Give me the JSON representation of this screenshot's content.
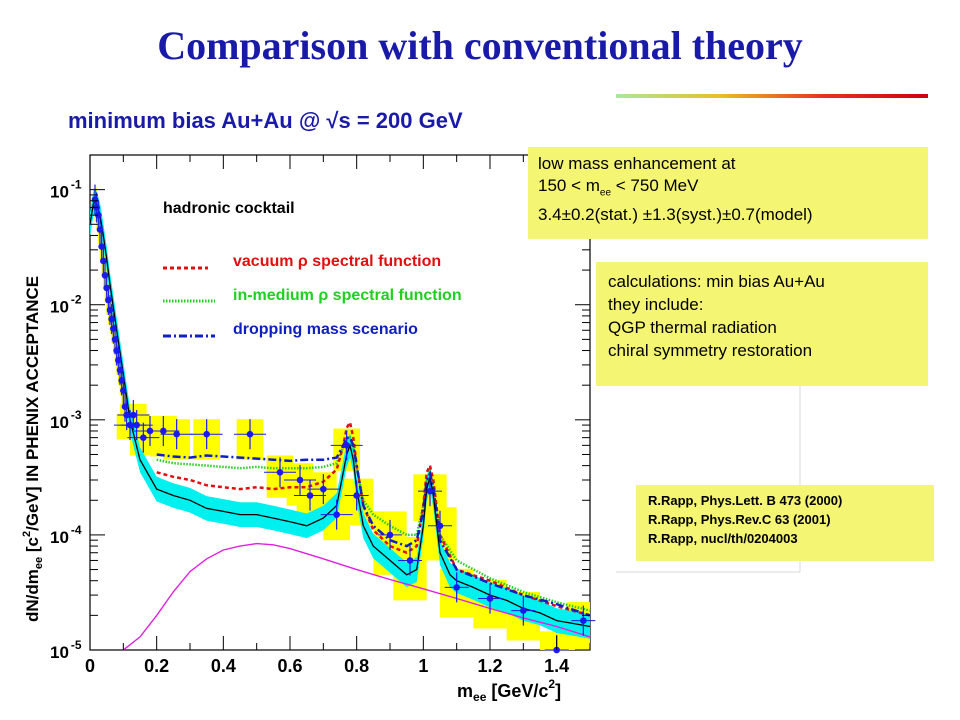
{
  "slide": {
    "title": "Comparison with conventional theory"
  },
  "colors": {
    "title": "#1a1aa8",
    "box": "#f5f574",
    "data_points": "#1a1aee",
    "vacuum": "#e01010",
    "in_medium": "#20d020",
    "dropping": "#1020c0",
    "cocktail": "#000000",
    "cocktail_band": "#00f0f0",
    "charm": "#e020e0",
    "syst": "#ffff00"
  },
  "chart_data": {
    "type": "line",
    "title": "minimum bias Au+Au @ √s = 200 GeV",
    "xlabel": "m",
    "xlabel_sub": "ee",
    "xlabel_tail": " [GeV/c",
    "xlabel_sup": "2",
    "xlabel_end": "]",
    "ylabel_a": "dN/dm",
    "ylabel_sub": "ee",
    "ylabel_b": " [c",
    "ylabel_sup": "2",
    "ylabel_c": "/GeV] IN PHENIX ACCEPTANCE",
    "xlim": [
      0,
      1.5
    ],
    "ylim": [
      1e-05,
      0.2
    ],
    "yscale": "log",
    "xticks": [
      "0",
      "0.2",
      "0.4",
      "0.6",
      "0.8",
      "1",
      "1.2",
      "1.4"
    ],
    "ytick_base": "10",
    "yticks": [
      "-1",
      "-2",
      "-3",
      "-4",
      "-5"
    ],
    "legend": {
      "cocktail": "hadronic cocktail",
      "vacuum": "vacuum ρ spectral function",
      "in_medium": "in-medium ρ spectral function",
      "dropping": "dropping mass scenario"
    },
    "cocktail": {
      "x": [
        0.0,
        0.01,
        0.015,
        0.02,
        0.03,
        0.04,
        0.05,
        0.06,
        0.08,
        0.1,
        0.12,
        0.15,
        0.2,
        0.25,
        0.3,
        0.35,
        0.4,
        0.45,
        0.5,
        0.55,
        0.6,
        0.65,
        0.7,
        0.74,
        0.76,
        0.77,
        0.78,
        0.79,
        0.8,
        0.82,
        0.85,
        0.9,
        0.95,
        0.98,
        1.0,
        1.01,
        1.02,
        1.03,
        1.05,
        1.08,
        1.1,
        1.15,
        1.2,
        1.25,
        1.3,
        1.35,
        1.4,
        1.45,
        1.5
      ],
      "y": [
        0.05,
        0.075,
        0.08,
        0.075,
        0.06,
        0.04,
        0.025,
        0.015,
        0.006,
        0.0025,
        0.001,
        0.00045,
        0.00025,
        0.00022,
        0.0002,
        0.00017,
        0.00016,
        0.00015,
        0.00015,
        0.00014,
        0.00013,
        0.00012,
        0.00014,
        0.00018,
        0.00035,
        0.0005,
        0.0006,
        0.00045,
        0.00025,
        0.00012,
        8e-05,
        6e-05,
        4.5e-05,
        5e-05,
        0.00012,
        0.00025,
        0.00032,
        0.00022,
        7e-05,
        4.5e-05,
        4e-05,
        3.5e-05,
        3e-05,
        2.7e-05,
        2.3e-05,
        2.1e-05,
        1.8e-05,
        1.7e-05,
        1.6e-05
      ]
    },
    "vacuum": {
      "x": [
        0.2,
        0.25,
        0.3,
        0.35,
        0.4,
        0.45,
        0.5,
        0.55,
        0.6,
        0.65,
        0.7,
        0.74,
        0.76,
        0.77,
        0.78,
        0.79,
        0.8,
        0.82,
        0.85,
        0.9,
        0.95,
        0.98,
        1.0,
        1.01,
        1.02,
        1.03,
        1.05,
        1.1,
        1.2,
        1.3,
        1.4,
        1.5
      ],
      "y": [
        0.00035,
        0.00032,
        0.0003,
        0.00027,
        0.00026,
        0.00025,
        0.00026,
        0.00025,
        0.00026,
        0.00026,
        0.00029,
        0.00037,
        0.0006,
        0.00085,
        0.00095,
        0.0007,
        0.0004,
        0.00018,
        0.00011,
        8e-05,
        7e-05,
        8e-05,
        0.00018,
        0.00035,
        0.0004,
        0.0003,
        0.0001,
        5e-05,
        4e-05,
        3e-05,
        2.4e-05,
        2e-05
      ]
    },
    "in_medium": {
      "x": [
        0.2,
        0.25,
        0.3,
        0.35,
        0.4,
        0.45,
        0.5,
        0.55,
        0.6,
        0.65,
        0.7,
        0.74,
        0.76,
        0.77,
        0.78,
        0.79,
        0.8,
        0.82,
        0.85,
        0.9,
        0.95,
        0.98,
        1.0,
        1.01,
        1.02,
        1.03,
        1.05,
        1.1,
        1.2,
        1.3,
        1.4,
        1.5
      ],
      "y": [
        0.00045,
        0.00042,
        0.00041,
        0.0004,
        0.00039,
        0.00038,
        0.00039,
        0.00038,
        0.00038,
        0.00038,
        0.00039,
        0.00042,
        0.00058,
        0.00068,
        0.0007,
        0.00058,
        0.00038,
        0.0002,
        0.00015,
        0.00012,
        0.0001,
        0.0001,
        0.00018,
        0.0003,
        0.00035,
        0.00026,
        0.0001,
        6e-05,
        4.2e-05,
        3.2e-05,
        2.6e-05,
        2.2e-05
      ]
    },
    "dropping": {
      "x": [
        0.2,
        0.25,
        0.3,
        0.35,
        0.4,
        0.45,
        0.5,
        0.55,
        0.6,
        0.65,
        0.7,
        0.74,
        0.76,
        0.77,
        0.78,
        0.79,
        0.8,
        0.82,
        0.85,
        0.9,
        0.95,
        0.98,
        1.0,
        1.01,
        1.02,
        1.03,
        1.05,
        1.1,
        1.2,
        1.3,
        1.4,
        1.5
      ],
      "y": [
        0.0005,
        0.00048,
        0.00047,
        0.00049,
        0.00048,
        0.00047,
        0.00046,
        0.00045,
        0.00044,
        0.00045,
        0.00045,
        0.00047,
        0.0006,
        0.0007,
        0.0007,
        0.0006,
        0.0004,
        0.00018,
        0.00012,
        9e-05,
        8e-05,
        9e-05,
        0.00016,
        0.0003,
        0.00034,
        0.00026,
        9e-05,
        5e-05,
        3.8e-05,
        3e-05,
        2.5e-05,
        2e-05
      ]
    },
    "charm": {
      "x": [
        0.1,
        0.15,
        0.2,
        0.25,
        0.3,
        0.35,
        0.4,
        0.45,
        0.5,
        0.55,
        0.6,
        0.7,
        0.8,
        0.9,
        1.0,
        1.1,
        1.2,
        1.3,
        1.4,
        1.5
      ],
      "y": [
        1e-05,
        1.3e-05,
        2e-05,
        3.2e-05,
        4.8e-05,
        6.2e-05,
        7.4e-05,
        8e-05,
        8.4e-05,
        8.2e-05,
        7.6e-05,
        6.2e-05,
        5e-05,
        4.1e-05,
        3.4e-05,
        2.8e-05,
        2.3e-05,
        1.9e-05,
        1.6e-05,
        1.3e-05
      ]
    },
    "data": {
      "x": [
        0.015,
        0.02,
        0.025,
        0.03,
        0.035,
        0.04,
        0.045,
        0.05,
        0.055,
        0.06,
        0.065,
        0.07,
        0.075,
        0.08,
        0.085,
        0.09,
        0.095,
        0.1,
        0.105,
        0.11,
        0.12,
        0.13,
        0.14,
        0.16,
        0.18,
        0.22,
        0.26,
        0.35,
        0.48,
        0.57,
        0.63,
        0.66,
        0.7,
        0.74,
        0.77,
        0.8,
        0.9,
        0.96,
        1.02,
        1.05,
        1.1,
        1.2,
        1.3,
        1.4,
        1.48
      ],
      "y": [
        0.082,
        0.07,
        0.06,
        0.045,
        0.032,
        0.024,
        0.018,
        0.014,
        0.011,
        0.009,
        0.0075,
        0.0062,
        0.005,
        0.004,
        0.0033,
        0.0027,
        0.0022,
        0.0018,
        0.0013,
        0.0011,
        0.0009,
        0.0011,
        0.0009,
        0.0007,
        0.0008,
        0.0008,
        0.00075,
        0.00075,
        0.00075,
        0.00035,
        0.0003,
        0.00022,
        0.00025,
        0.00015,
        0.0006,
        0.00022,
        0.0001,
        6e-05,
        0.00024,
        0.00012,
        3.5e-05,
        2.8e-05,
        2.2e-05,
        1e-05,
        1.8e-05
      ],
      "sys_lo": [
        0.75,
        0.75,
        0.75,
        0.75,
        0.75,
        0.75,
        0.75,
        0.75,
        0.75,
        0.75,
        0.75,
        0.75,
        0.75,
        0.75,
        0.75,
        0.75,
        0.75,
        0.75,
        0.75,
        0.75,
        0.75,
        0.75,
        0.75,
        0.7,
        0.65,
        0.6,
        0.6,
        0.6,
        0.6,
        0.6,
        0.6,
        0.6,
        0.6,
        0.6,
        0.6,
        0.55,
        0.45,
        0.45,
        0.55,
        0.5,
        0.55,
        0.55,
        0.55,
        0.55,
        0.55
      ],
      "sys_hi": [
        1.25,
        1.25,
        1.25,
        1.25,
        1.25,
        1.25,
        1.25,
        1.25,
        1.25,
        1.25,
        1.25,
        1.25,
        1.25,
        1.25,
        1.25,
        1.25,
        1.25,
        1.25,
        1.25,
        1.25,
        1.25,
        1.25,
        1.25,
        1.3,
        1.35,
        1.35,
        1.35,
        1.35,
        1.35,
        1.4,
        1.4,
        1.4,
        1.4,
        1.4,
        1.4,
        1.4,
        1.6,
        1.6,
        1.4,
        1.45,
        1.45,
        1.45,
        1.45,
        1.45,
        1.45
      ]
    }
  },
  "boxes": {
    "enhancement": {
      "line1": "low mass enhancement at",
      "line2_a": "150 < m",
      "line2_sub": "ee",
      "line2_b": " < 750 MeV",
      "line3": "3.4±0.2(stat.) ±1.3(syst.)±0.7(model)"
    },
    "calculations": {
      "line1": "calculations: min bias Au+Au",
      "line2": "they include:",
      "line3": "QGP thermal radiation",
      "line4": "chiral symmetry restoration"
    },
    "references": {
      "ref1": "R.Rapp, Phys.Lett. B 473 (2000)",
      "ref2": "R.Rapp, Phys.Rev.C 63 (2001)",
      "ref3": "R.Rapp, nucl/th/0204003"
    }
  }
}
